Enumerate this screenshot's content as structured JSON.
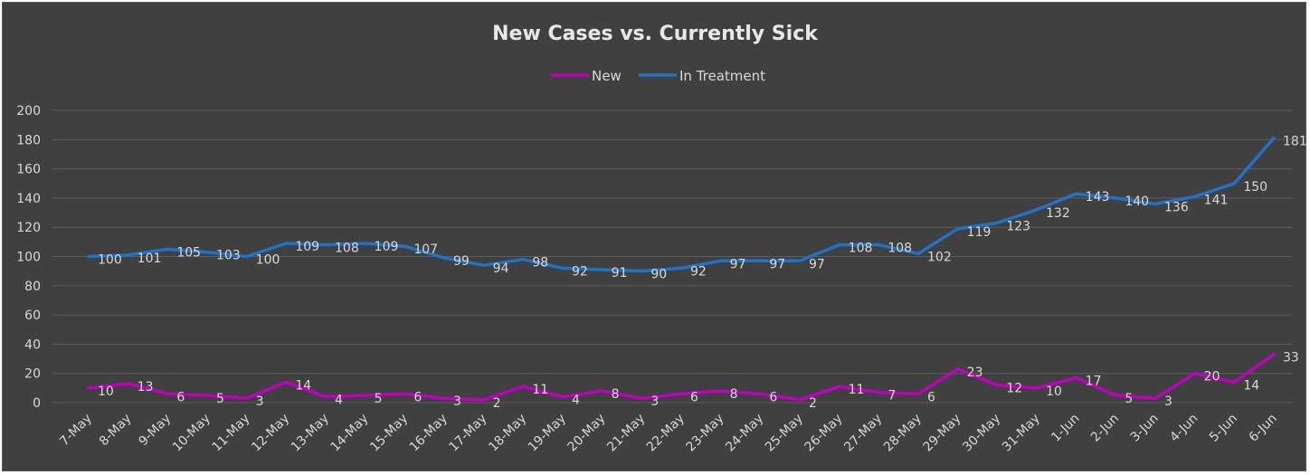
{
  "chart_data": {
    "type": "line",
    "title": "New Cases vs. Currently Sick",
    "xlabel": "",
    "ylabel": "",
    "ylim": [
      0,
      200
    ],
    "yticks": [
      "0",
      "20",
      "40",
      "60",
      "80",
      "100",
      "120",
      "140",
      "160",
      "180",
      "200"
    ],
    "grid": true,
    "legend_position": "top",
    "categories": [
      "7-May",
      "8-May",
      "9-May",
      "10-May",
      "11-May",
      "12-May",
      "13-May",
      "14-May",
      "15-May",
      "16-May",
      "17-May",
      "18-May",
      "19-May",
      "20-May",
      "21-May",
      "22-May",
      "23-May",
      "24-May",
      "25-May",
      "26-May",
      "27-May",
      "28-May",
      "29-May",
      "30-May",
      "31-May",
      "1-Jun",
      "2-Jun",
      "3-Jun",
      "4-Jun",
      "5-Jun",
      "6-Jun"
    ],
    "series": [
      {
        "name": "New",
        "color": "#c000c0",
        "values": [
          10,
          13,
          6,
          5,
          3,
          14,
          4,
          5,
          6,
          3,
          2,
          11,
          4,
          8,
          3,
          6,
          8,
          6,
          2,
          11,
          7,
          6,
          23,
          12,
          10,
          17,
          5,
          3,
          20,
          14,
          33
        ]
      },
      {
        "name": "In Treatment",
        "color": "#1f72c4",
        "values": [
          100,
          101,
          105,
          103,
          100,
          109,
          108,
          109,
          107,
          99,
          94,
          98,
          92,
          91,
          90,
          92,
          97,
          97,
          97,
          108,
          108,
          102,
          119,
          123,
          132,
          143,
          140,
          136,
          141,
          150,
          181
        ]
      }
    ]
  }
}
